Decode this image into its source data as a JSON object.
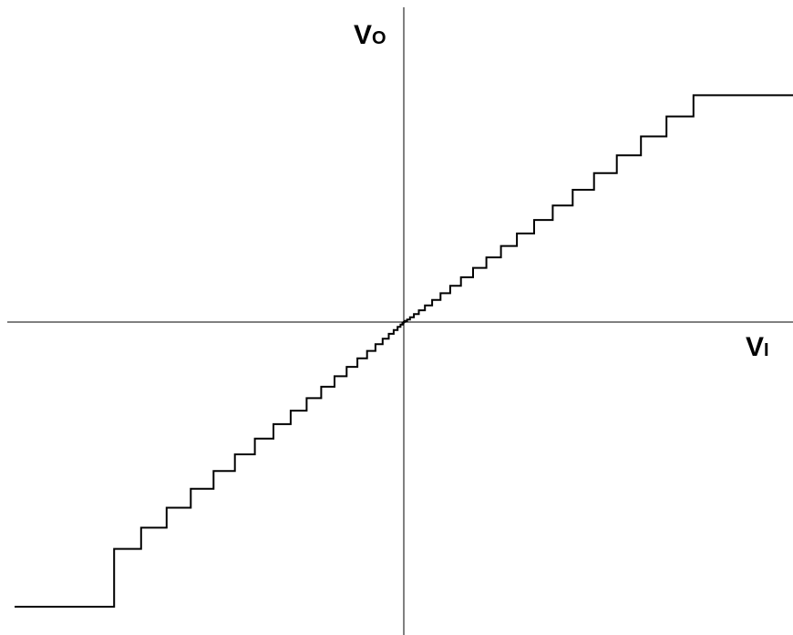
{
  "diagram": {
    "type": "stepped transfer characteristic",
    "y_axis_label": {
      "main": "V",
      "sub": "O"
    },
    "x_axis_label": {
      "main": "V",
      "sub": "I"
    },
    "colors": {
      "background": "#ffffff",
      "stroke": "#000000"
    },
    "staircase_steps_each_side": 24
  }
}
